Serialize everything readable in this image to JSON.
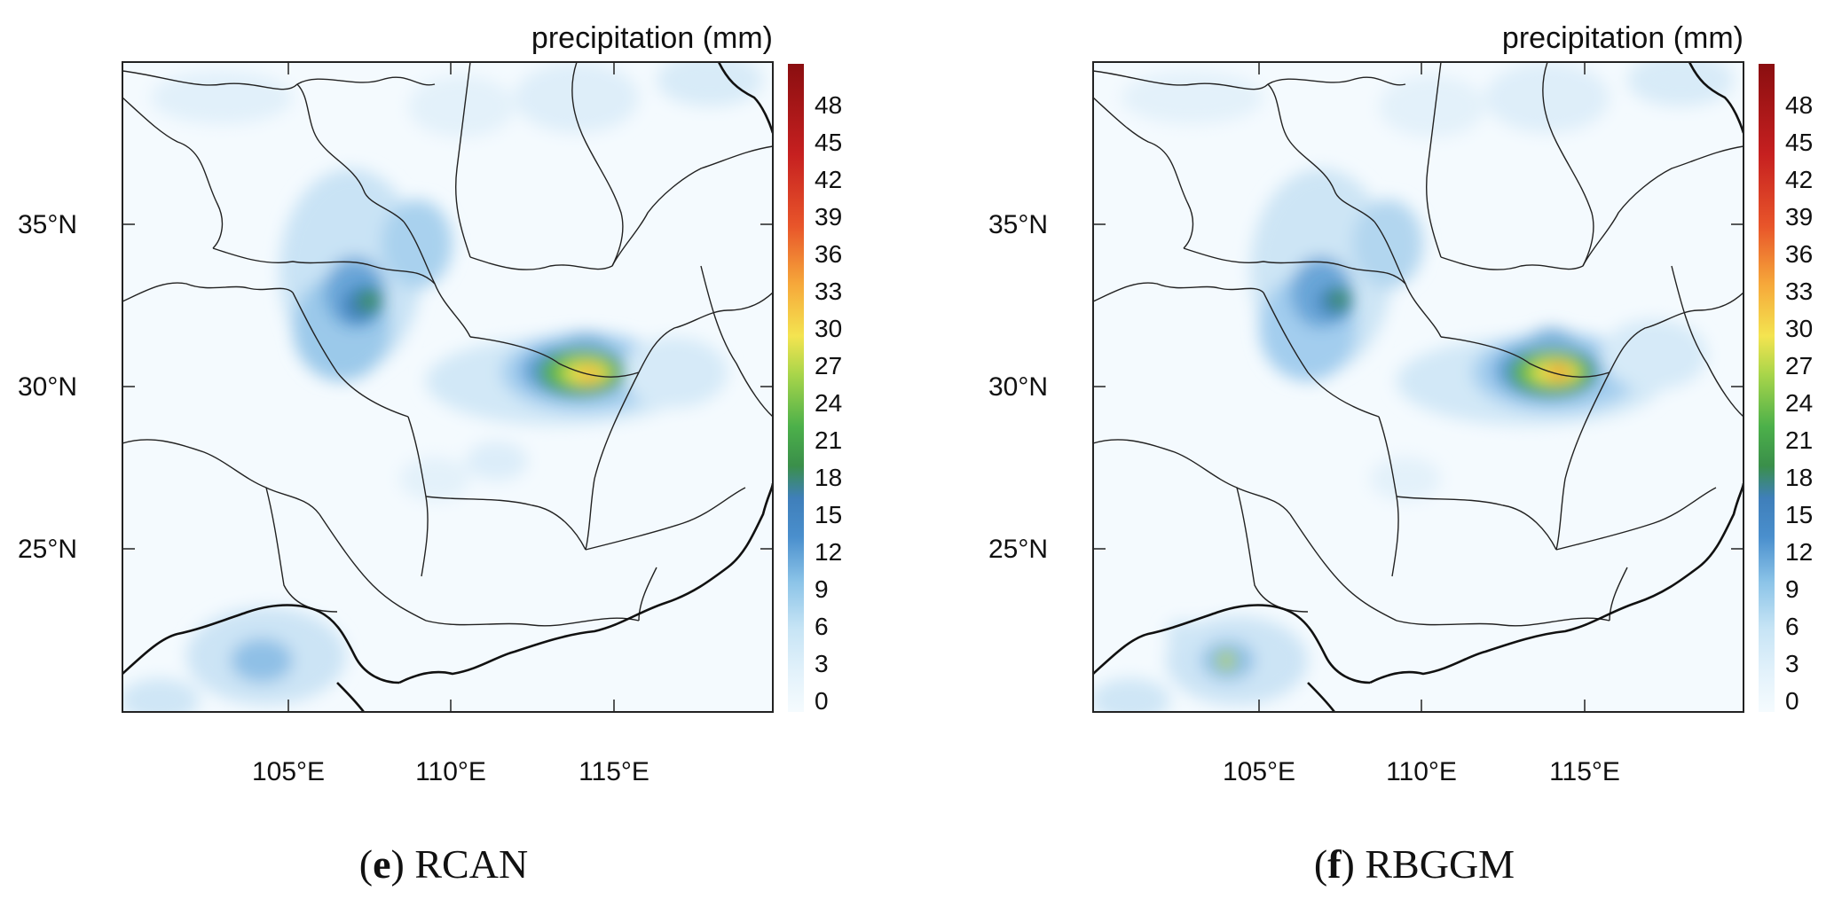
{
  "panels": [
    {
      "id": "e",
      "caption": {
        "letter": "e",
        "name": "RCAN"
      },
      "colorbar_title": "precipitation (mm)"
    },
    {
      "id": "f",
      "caption": {
        "letter": "f",
        "name": "RBGGM"
      },
      "colorbar_title": "precipitation (mm)"
    }
  ],
  "chart_data": {
    "type": "heatmap",
    "title": "precipitation (mm)",
    "colorbar": {
      "min": 0,
      "max": 50,
      "ticks": [
        "0",
        "3",
        "6",
        "9",
        "12",
        "15",
        "18",
        "21",
        "24",
        "27",
        "30",
        "33",
        "36",
        "39",
        "42",
        "45",
        "48"
      ],
      "colors": [
        "#f5fbfe",
        "#c6e4f5",
        "#8cc4e8",
        "#4a8fcd",
        "#3a8f4a",
        "#4cb04a",
        "#a8d54a",
        "#f4e450",
        "#f6a83a",
        "#e8552a",
        "#c62020",
        "#8a0e10"
      ]
    },
    "x_axis": {
      "ticks": [
        "105°E",
        "110°E",
        "115°E"
      ],
      "values": [
        105,
        110,
        115
      ],
      "range": [
        100,
        120
      ]
    },
    "y_axis": {
      "ticks": [
        "35°N",
        "30°N",
        "25°N"
      ],
      "values": [
        35,
        30,
        25
      ],
      "range": [
        20,
        40
      ]
    },
    "series": [
      {
        "name": "RCAN",
        "hotspots": [
          {
            "lon": 113.8,
            "lat": 30.2,
            "peak_mm": 33
          },
          {
            "lon": 107.4,
            "lat": 32.8,
            "peak_mm": 24
          },
          {
            "lon": 106.6,
            "lat": 31.3,
            "peak_mm": 15
          },
          {
            "lon": 104.3,
            "lat": 21.6,
            "peak_mm": 12
          }
        ]
      },
      {
        "name": "RBGGM",
        "hotspots": [
          {
            "lon": 113.8,
            "lat": 30.3,
            "peak_mm": 36
          },
          {
            "lon": 107.3,
            "lat": 32.8,
            "peak_mm": 24
          },
          {
            "lon": 106.9,
            "lat": 31.3,
            "peak_mm": 15
          },
          {
            "lon": 104.1,
            "lat": 21.5,
            "peak_mm": 27
          }
        ]
      }
    ]
  }
}
